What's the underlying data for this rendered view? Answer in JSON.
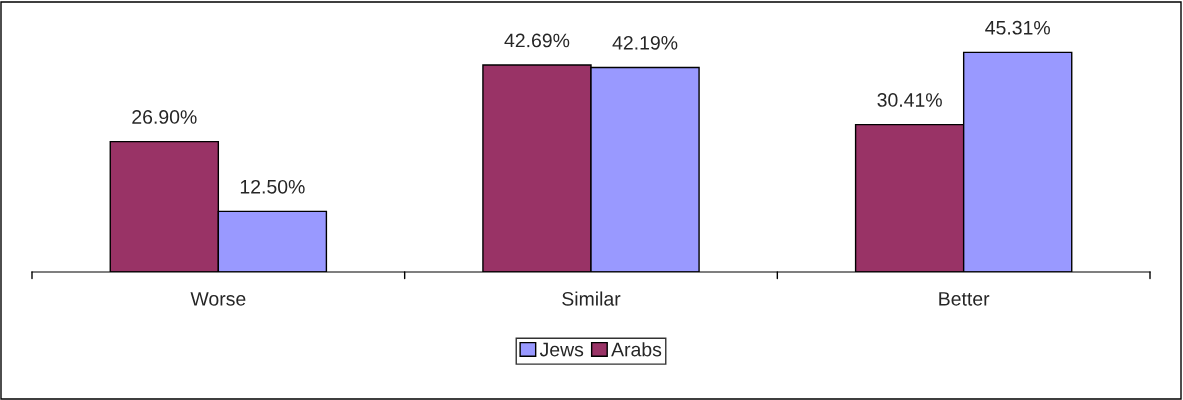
{
  "chart_data": {
    "type": "bar",
    "categories": [
      "Worse",
      "Similar",
      "Better"
    ],
    "series": [
      {
        "name": "Arabs",
        "color": "#993366",
        "values": [
          26.9,
          42.69,
          30.41
        ],
        "value_labels": [
          "26.90%",
          "42.69%",
          "30.41%"
        ]
      },
      {
        "name": "Jews",
        "color": "#9999ff",
        "values": [
          12.5,
          42.19,
          45.31
        ],
        "value_labels": [
          "12.50%",
          "42.19%",
          "45.31%"
        ]
      }
    ],
    "legend": "bottom",
    "grid": false
  }
}
